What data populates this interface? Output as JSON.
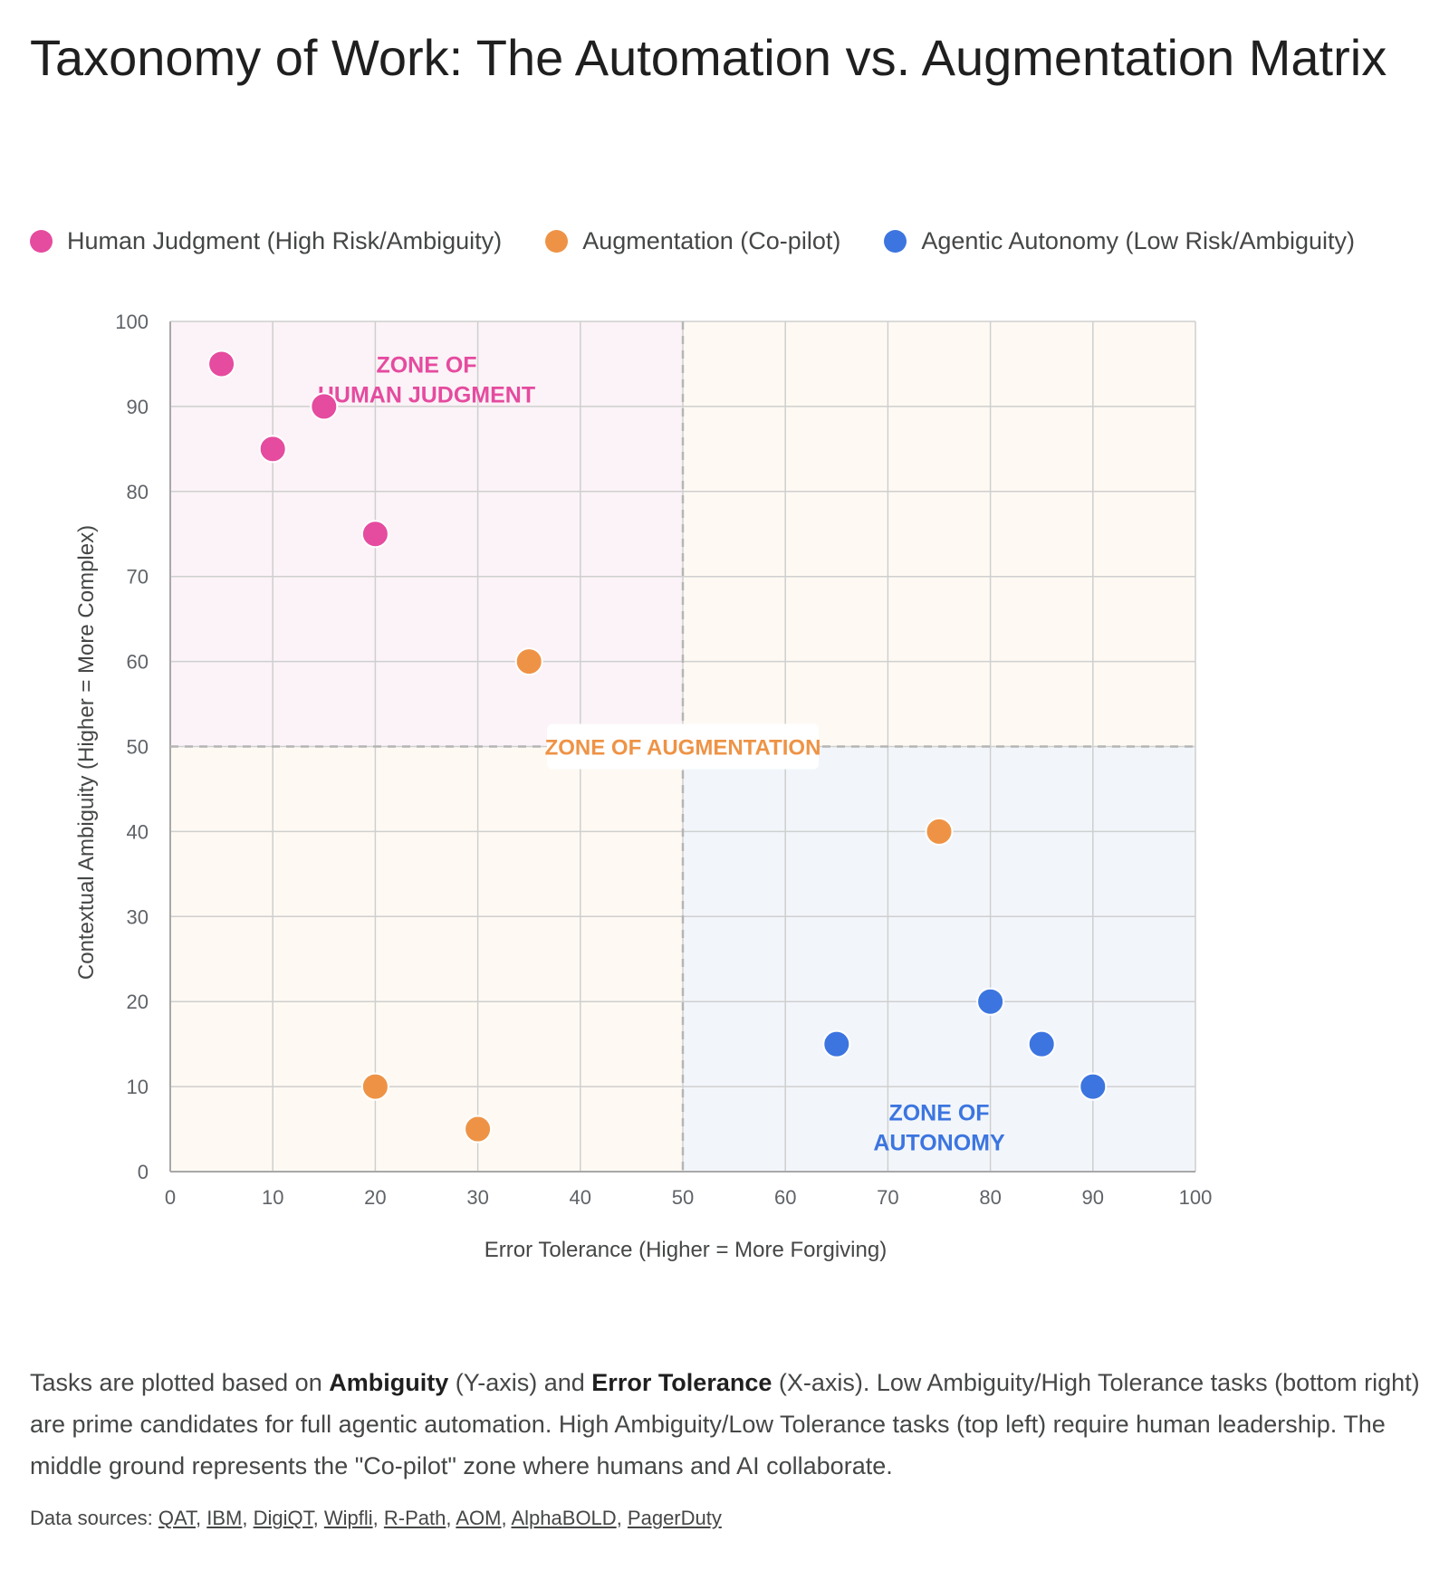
{
  "page": {
    "title": "Taxonomy of Work: The Automation vs. Augmentation Matrix"
  },
  "legend": [
    {
      "label": "Human Judgment (High Risk/Ambiguity)",
      "color": "#e54b9f"
    },
    {
      "label": "Augmentation (Co-pilot)",
      "color": "#ee9346"
    },
    {
      "label": "Agentic Autonomy (Low Risk/Ambiguity)",
      "color": "#3c75e0"
    }
  ],
  "chart_data": {
    "type": "scatter",
    "xlabel": "Error Tolerance (Higher = More Forgiving)",
    "ylabel": "Contextual Ambiguity (Higher = More Complex)",
    "xlim": [
      0,
      100
    ],
    "ylim": [
      0,
      100
    ],
    "xticks": [
      0,
      10,
      20,
      30,
      40,
      50,
      60,
      70,
      80,
      90,
      100
    ],
    "yticks": [
      0,
      10,
      20,
      30,
      40,
      50,
      60,
      70,
      80,
      90,
      100
    ],
    "grid": true,
    "series": [
      {
        "name": "Human Judgment (High Risk/Ambiguity)",
        "color": "#e54b9f",
        "points": [
          [
            5,
            95
          ],
          [
            10,
            85
          ],
          [
            15,
            90
          ],
          [
            20,
            75
          ]
        ]
      },
      {
        "name": "Augmentation (Co-pilot)",
        "color": "#ee9346",
        "points": [
          [
            35,
            60
          ],
          [
            75,
            40
          ],
          [
            20,
            10
          ],
          [
            30,
            5
          ]
        ]
      },
      {
        "name": "Agentic Autonomy (Low Risk/Ambiguity)",
        "color": "#3c75e0",
        "points": [
          [
            65,
            15
          ],
          [
            80,
            20
          ],
          [
            85,
            15
          ],
          [
            90,
            10
          ]
        ]
      }
    ],
    "zones": [
      {
        "name": "human",
        "label_lines": [
          "ZONE OF",
          "HUMAN JUDGMENT"
        ],
        "color": "#e54b9f",
        "fill": "#fbf3f7",
        "x_range": [
          0,
          50
        ],
        "y_range": [
          50,
          100
        ],
        "label_at": [
          25,
          94
        ]
      },
      {
        "name": "augmentation",
        "label_lines": [
          "ZONE OF AUGMENTATION"
        ],
        "color": "#ee9346",
        "fill": "#fefaf3",
        "x_range": [
          50,
          100
        ],
        "y_range": [
          50,
          100
        ],
        "label_at": [
          50,
          50
        ]
      },
      {
        "name": "augmentation-lower",
        "label_lines": [],
        "color": "#ee9346",
        "fill": "#fefaf3",
        "x_range": [
          0,
          50
        ],
        "y_range": [
          0,
          50
        ],
        "label_at": null
      },
      {
        "name": "autonomy",
        "label_lines": [
          "ZONE OF",
          "AUTONOMY"
        ],
        "color": "#3c75e0",
        "fill": "#f2f6fb",
        "x_range": [
          50,
          100
        ],
        "y_range": [
          0,
          50
        ],
        "label_at": [
          75,
          6
        ]
      }
    ],
    "dividers": {
      "x": 50,
      "y": 50
    }
  },
  "description": {
    "part1": "Tasks are plotted based on ",
    "bold1": "Ambiguity",
    "part2": " (Y-axis) and ",
    "bold2": "Error Tolerance",
    "part3": " (X-axis). Low Ambiguity/High Tolerance tasks (bottom right) are prime candidates for full agentic automation. High Ambiguity/Low Tolerance tasks (top left) require human leadership. The middle ground represents the \"Co-pilot\" zone where humans and AI collaborate."
  },
  "sources": {
    "label": "Data sources: ",
    "links": [
      "QAT",
      "IBM",
      "DigiQT",
      "Wipfli",
      "R-Path",
      "AOM",
      "AlphaBOLD",
      "PagerDuty"
    ]
  }
}
